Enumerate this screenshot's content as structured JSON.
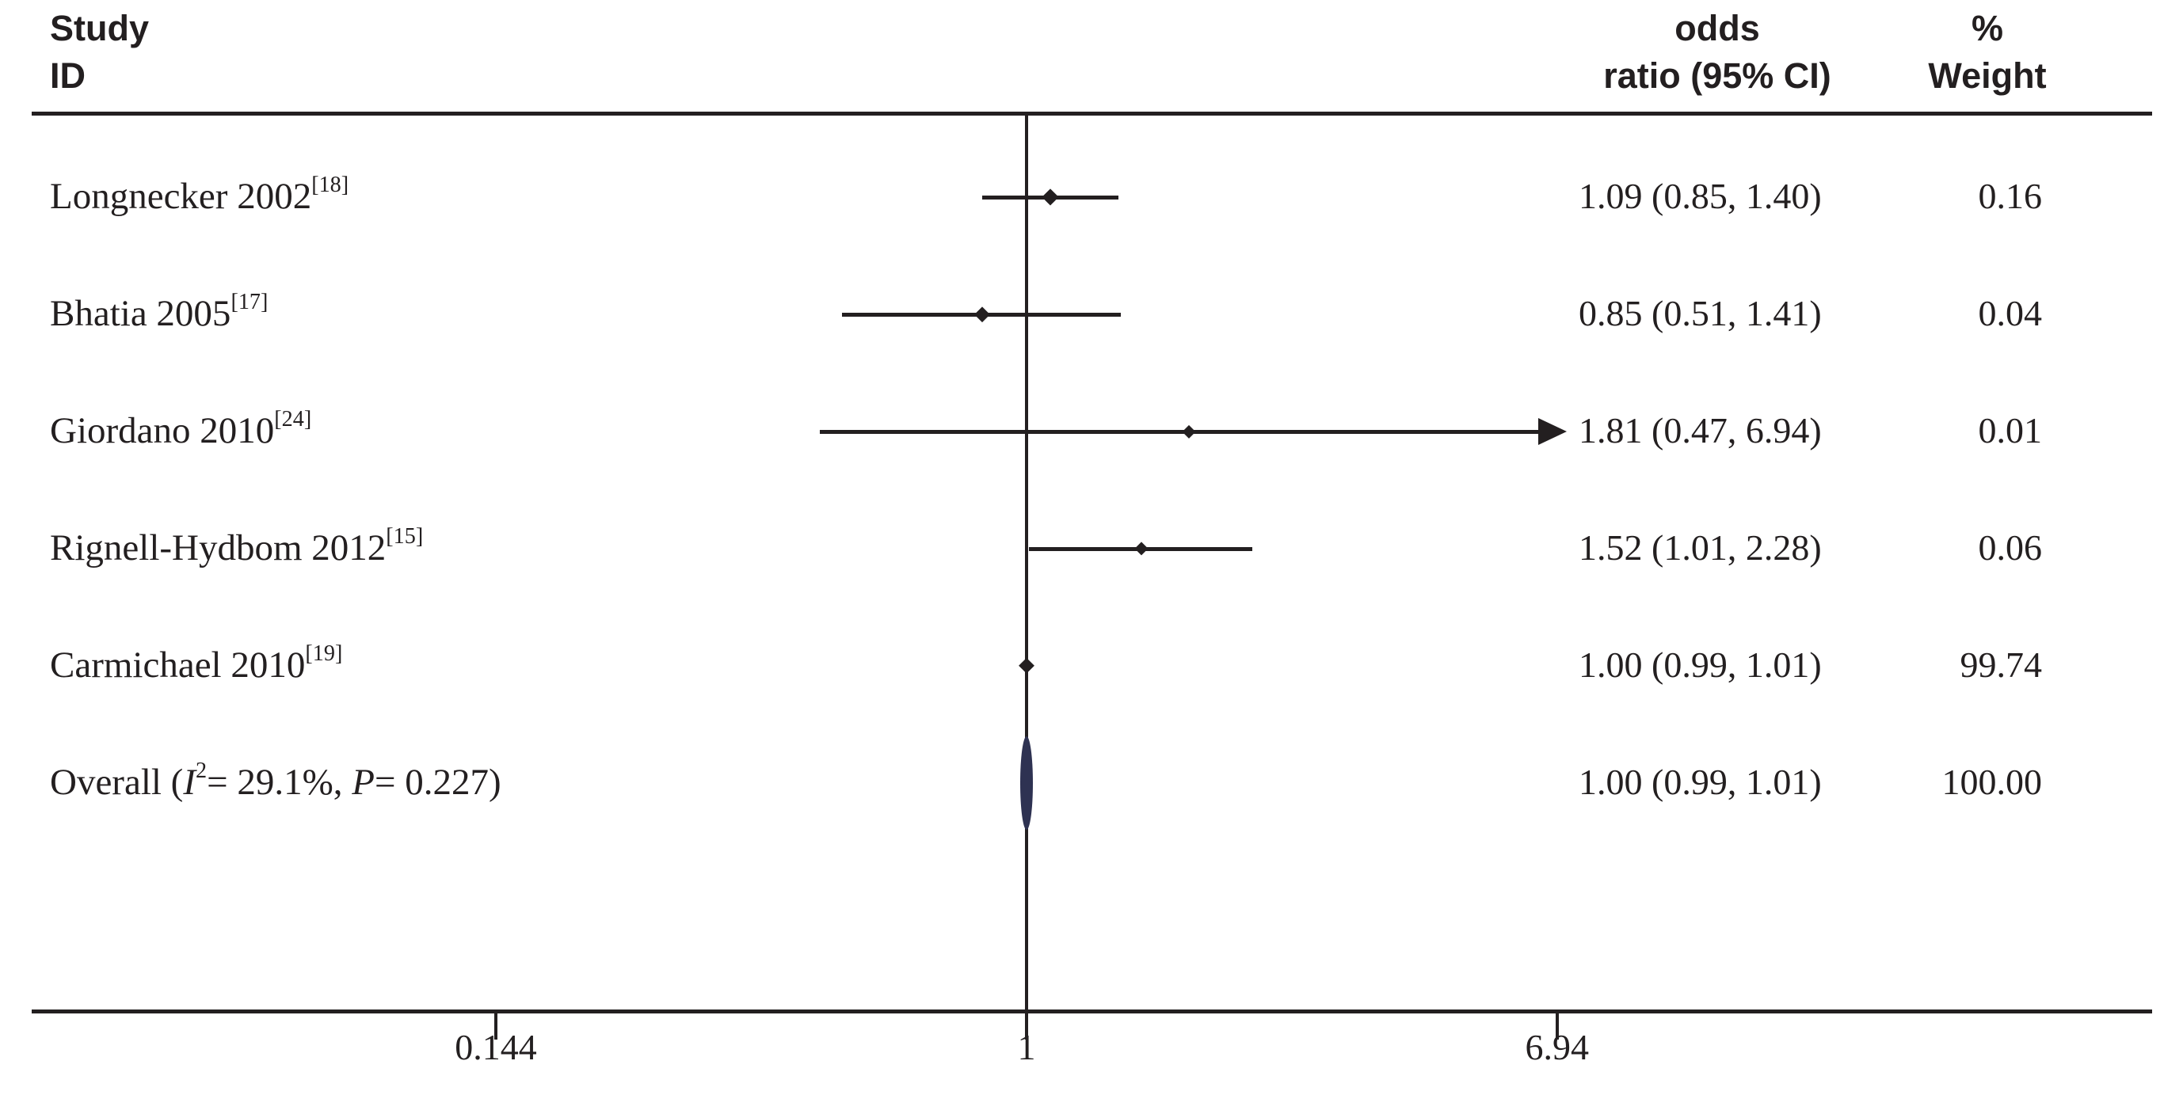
{
  "figure": {
    "background": "#ffffff",
    "ink_color": "#231f20"
  },
  "header": {
    "study_col_line1": "Study",
    "study_col_line2": "ID",
    "or_col_line1": "odds",
    "or_col_line2": "ratio (95% CI)",
    "weight_col_line1": "%",
    "weight_col_line2": "Weight"
  },
  "chart_data": {
    "type": "forest-plot",
    "x_scale": "log",
    "x_axis_ticks": [
      "0.144",
      "1",
      "6.94"
    ],
    "x_axis_tick_values": [
      0.144,
      1,
      6.94
    ],
    "reference_value": 1,
    "grid": false,
    "colors": {
      "marker": "#231f20",
      "line": "#231f20",
      "overall_marker": "#2e3252"
    },
    "studies": [
      {
        "label": "Longnecker 2002",
        "ref_sup": "[18]",
        "or": 1.09,
        "ci_low": 0.85,
        "ci_high": 1.4,
        "or_ci_text": "1.09 (0.85, 1.40)",
        "weight_pct": "0.16",
        "marker_size": 21,
        "arrow_high": false
      },
      {
        "label": "Bhatia 2005",
        "ref_sup": "[17]",
        "or": 0.85,
        "ci_low": 0.51,
        "ci_high": 1.41,
        "or_ci_text": "0.85 (0.51, 1.41)",
        "weight_pct": "0.04",
        "marker_size": 19,
        "arrow_high": false
      },
      {
        "label": "Giordano 2010",
        "ref_sup": "[24]",
        "or": 1.81,
        "ci_low": 0.47,
        "ci_high": 6.94,
        "or_ci_text": "1.81 (0.47, 6.94)",
        "weight_pct": "0.01",
        "marker_size": 16,
        "arrow_high": true
      },
      {
        "label": "Rignell-Hydbom 2012",
        "ref_sup": "[15]",
        "or": 1.52,
        "ci_low": 1.01,
        "ci_high": 2.28,
        "or_ci_text": "1.52 (1.01, 2.28)",
        "weight_pct": "0.06",
        "marker_size": 17,
        "arrow_high": false
      },
      {
        "label": "Carmichael 2010",
        "ref_sup": "[19]",
        "or": 1.0,
        "ci_low": 0.99,
        "ci_high": 1.01,
        "or_ci_text": "1.00 (0.99, 1.01)",
        "weight_pct": "99.74",
        "marker_size": 20,
        "arrow_high": false
      }
    ],
    "overall": {
      "label_parts": [
        {
          "t": "Overall  (",
          "style": "plain"
        },
        {
          "t": "I",
          "style": "italic"
        },
        {
          "t": "2",
          "style": "sup"
        },
        {
          "t": "= 29.1%, ",
          "style": "plain"
        },
        {
          "t": "P",
          "style": "italic"
        },
        {
          "t": "= 0.227)",
          "style": "plain"
        }
      ],
      "i_squared": "29.1%",
      "p_value": "0.227",
      "or": 1.0,
      "ci_low": 0.99,
      "ci_high": 1.01,
      "or_ci_text": "1.00 (0.99, 1.01)",
      "weight_pct": "100.00"
    }
  }
}
